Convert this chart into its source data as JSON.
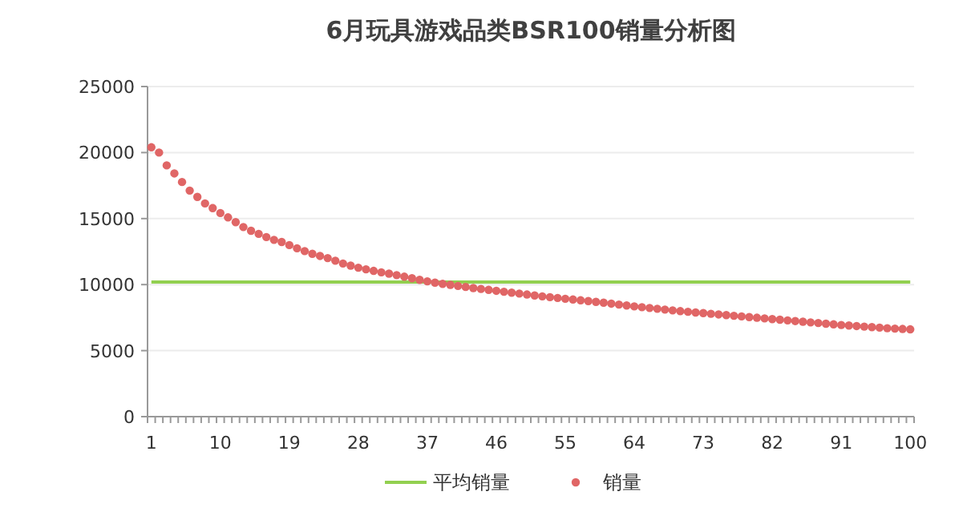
{
  "chart_data": {
    "type": "scatter",
    "title": "6月玩具游戏品类BSR100销量分析图",
    "categories": [
      "1",
      null,
      null,
      null,
      null,
      null,
      null,
      null,
      null,
      "10",
      null,
      null,
      null,
      null,
      null,
      null,
      null,
      null,
      "19",
      null,
      null,
      null,
      null,
      null,
      null,
      null,
      null,
      "28",
      null,
      null,
      null,
      null,
      null,
      null,
      null,
      null,
      "37",
      null,
      null,
      null,
      null,
      null,
      null,
      null,
      null,
      "46",
      null,
      null,
      null,
      null,
      null,
      null,
      null,
      null,
      "55",
      null,
      null,
      null,
      null,
      null,
      null,
      null,
      null,
      "64",
      null,
      null,
      null,
      null,
      null,
      null,
      null,
      null,
      "73",
      null,
      null,
      null,
      null,
      null,
      null,
      null,
      null,
      "82",
      null,
      null,
      null,
      null,
      null,
      null,
      null,
      null,
      "91",
      null,
      null,
      null,
      null,
      null,
      null,
      null,
      null,
      "100"
    ],
    "series": [
      {
        "name": "平均销量",
        "type": "line",
        "color": "#92d050",
        "values": [
          10200,
          10200,
          10200,
          10200,
          10200,
          10200,
          10200,
          10200,
          10200,
          10200,
          10200,
          10200,
          10200,
          10200,
          10200,
          10200,
          10200,
          10200,
          10200,
          10200,
          10200,
          10200,
          10200,
          10200,
          10200,
          10200,
          10200,
          10200,
          10200,
          10200,
          10200,
          10200,
          10200,
          10200,
          10200,
          10200,
          10200,
          10200,
          10200,
          10200,
          10200,
          10200,
          10200,
          10200,
          10200,
          10200,
          10200,
          10200,
          10200,
          10200,
          10200,
          10200,
          10200,
          10200,
          10200,
          10200,
          10200,
          10200,
          10200,
          10200,
          10200,
          10200,
          10200,
          10200,
          10200,
          10200,
          10200,
          10200,
          10200,
          10200,
          10200,
          10200,
          10200,
          10200,
          10200,
          10200,
          10200,
          10200,
          10200,
          10200,
          10200,
          10200,
          10200,
          10200,
          10200,
          10200,
          10200,
          10200,
          10200,
          10200,
          10200,
          10200,
          10200,
          10200,
          10200,
          10200,
          10200,
          10200,
          10200,
          10200
        ]
      },
      {
        "name": "销量",
        "color": "#e06666",
        "marker": "circle",
        "values": [
          20400,
          20000,
          19030,
          18420,
          17770,
          17120,
          16640,
          16150,
          15790,
          15420,
          15090,
          14730,
          14360,
          14080,
          13840,
          13600,
          13390,
          13230,
          12990,
          12750,
          12540,
          12330,
          12170,
          12010,
          11810,
          11600,
          11440,
          11280,
          11160,
          11040,
          10930,
          10830,
          10720,
          10600,
          10480,
          10360,
          10250,
          10150,
          10060,
          9980,
          9900,
          9820,
          9740,
          9670,
          9600,
          9530,
          9460,
          9390,
          9320,
          9250,
          9180,
          9110,
          9050,
          8990,
          8930,
          8870,
          8810,
          8750,
          8690,
          8630,
          8560,
          8490,
          8420,
          8350,
          8290,
          8230,
          8170,
          8110,
          8050,
          7990,
          7940,
          7890,
          7840,
          7790,
          7740,
          7690,
          7640,
          7590,
          7540,
          7490,
          7440,
          7390,
          7340,
          7290,
          7240,
          7190,
          7140,
          7090,
          7040,
          6990,
          6940,
          6900,
          6860,
          6820,
          6780,
          6740,
          6700,
          6670,
          6640,
          6610
        ]
      }
    ],
    "ylim": [
      0,
      25000
    ],
    "yticks": [
      0,
      5000,
      10000,
      15000,
      20000,
      25000
    ],
    "grid": "y",
    "legend": "bottom"
  }
}
